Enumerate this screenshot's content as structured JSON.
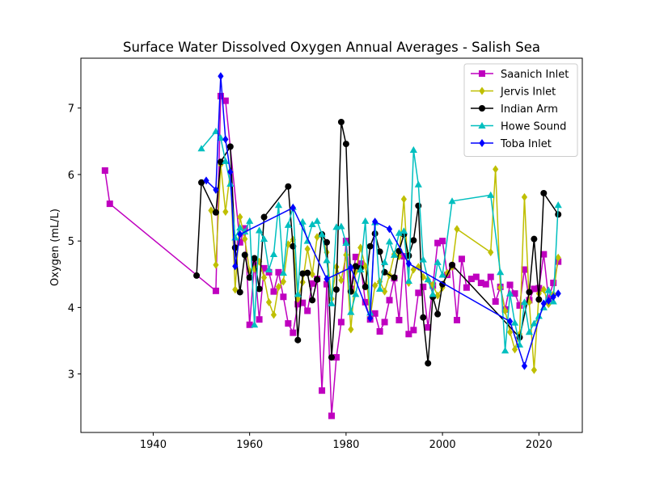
{
  "chart_data": {
    "type": "line",
    "title": "Surface Water Dissolved Oxygen Annual Averages - Salish Sea",
    "xlabel": "",
    "ylabel": "Oxygen (mL/L)",
    "xlim": [
      1925,
      2029
    ],
    "ylim": [
      2.12,
      7.75
    ],
    "xticks": [
      1940,
      1960,
      1980,
      2000,
      2020
    ],
    "yticks": [
      3,
      4,
      5,
      6,
      7
    ],
    "grid": false,
    "legend_position": "top-right",
    "series": [
      {
        "name": "Saanich Inlet",
        "color": "#bf00bf",
        "marker": "square",
        "points": [
          [
            1930,
            6.06
          ],
          [
            1931,
            5.56
          ],
          [
            1953,
            4.25
          ],
          [
            1954,
            7.18
          ],
          [
            1955,
            7.11
          ],
          [
            1958,
            4.98
          ],
          [
            1959,
            5.19
          ],
          [
            1960,
            3.74
          ],
          [
            1961,
            4.66
          ],
          [
            1962,
            3.82
          ],
          [
            1963,
            4.59
          ],
          [
            1964,
            4.53
          ],
          [
            1965,
            4.24
          ],
          [
            1966,
            4.53
          ],
          [
            1967,
            4.16
          ],
          [
            1968,
            3.76
          ],
          [
            1969,
            3.62
          ],
          [
            1970,
            4.05
          ],
          [
            1971,
            4.07
          ],
          [
            1972,
            3.95
          ],
          [
            1973,
            4.36
          ],
          [
            1974,
            4.43
          ],
          [
            1975,
            2.75
          ],
          [
            1976,
            4.35
          ],
          [
            1977,
            2.37
          ],
          [
            1978,
            3.25
          ],
          [
            1979,
            3.78
          ],
          [
            1980,
            5.0
          ],
          [
            1981,
            4.28
          ],
          [
            1982,
            4.76
          ],
          [
            1983,
            4.66
          ],
          [
            1984,
            4.08
          ],
          [
            1985,
            3.82
          ],
          [
            1986,
            3.91
          ],
          [
            1987,
            3.64
          ],
          [
            1988,
            3.78
          ],
          [
            1989,
            4.11
          ],
          [
            1990,
            4.44
          ],
          [
            1991,
            3.81
          ],
          [
            1992,
            4.77
          ],
          [
            1993,
            3.6
          ],
          [
            1994,
            3.66
          ],
          [
            1995,
            4.22
          ],
          [
            1996,
            4.31
          ],
          [
            1997,
            3.7
          ],
          [
            1998,
            4.33
          ],
          [
            1999,
            4.97
          ],
          [
            2000,
            5.0
          ],
          [
            2001,
            4.49
          ],
          [
            2002,
            4.62
          ],
          [
            2003,
            3.81
          ],
          [
            2004,
            4.73
          ],
          [
            2005,
            4.3
          ],
          [
            2006,
            4.43
          ],
          [
            2007,
            4.46
          ],
          [
            2008,
            4.37
          ],
          [
            2009,
            4.35
          ],
          [
            2010,
            4.46
          ],
          [
            2011,
            4.09
          ],
          [
            2012,
            4.31
          ],
          [
            2013,
            3.97
          ],
          [
            2014,
            4.34
          ],
          [
            2015,
            4.21
          ],
          [
            2016,
            4.03
          ],
          [
            2017,
            4.57
          ],
          [
            2018,
            4.11
          ],
          [
            2019,
            4.28
          ],
          [
            2020,
            4.29
          ],
          [
            2021,
            4.8
          ],
          [
            2022,
            4.13
          ],
          [
            2023,
            4.37
          ],
          [
            2024,
            4.69
          ]
        ]
      },
      {
        "name": "Jervis Inlet",
        "color": "#bfbf00",
        "marker": "diamond",
        "points": [
          [
            1952,
            5.46
          ],
          [
            1953,
            4.64
          ],
          [
            1954,
            6.15
          ],
          [
            1955,
            5.44
          ],
          [
            1956,
            6.05
          ],
          [
            1957,
            4.27
          ],
          [
            1958,
            5.36
          ],
          [
            1959,
            5.03
          ],
          [
            1960,
            4.55
          ],
          [
            1961,
            4.58
          ],
          [
            1962,
            4.69
          ],
          [
            1963,
            4.45
          ],
          [
            1964,
            4.08
          ],
          [
            1965,
            3.89
          ],
          [
            1966,
            4.31
          ],
          [
            1967,
            4.39
          ],
          [
            1968,
            4.95
          ],
          [
            1969,
            5.02
          ],
          [
            1970,
            4.13
          ],
          [
            1971,
            4.38
          ],
          [
            1972,
            4.88
          ],
          [
            1973,
            4.5
          ],
          [
            1974,
            5.06
          ],
          [
            1975,
            5.08
          ],
          [
            1976,
            4.83
          ],
          [
            1977,
            4.13
          ],
          [
            1978,
            4.61
          ],
          [
            1979,
            4.41
          ],
          [
            1980,
            4.79
          ],
          [
            1981,
            3.67
          ],
          [
            1982,
            4.54
          ],
          [
            1983,
            4.9
          ],
          [
            1984,
            4.62
          ],
          [
            1985,
            3.85
          ],
          [
            1986,
            4.33
          ],
          [
            1987,
            4.39
          ],
          [
            1988,
            4.24
          ],
          [
            1989,
            4.49
          ],
          [
            1990,
            4.8
          ],
          [
            1991,
            4.77
          ],
          [
            1992,
            5.63
          ],
          [
            1993,
            4.37
          ],
          [
            1994,
            4.57
          ],
          [
            1995,
            4.61
          ],
          [
            1996,
            4.46
          ],
          [
            1997,
            4.42
          ],
          [
            1998,
            4.34
          ],
          [
            1999,
            4.18
          ],
          [
            2000,
            4.3
          ],
          [
            2001,
            4.52
          ],
          [
            2002,
            4.61
          ],
          [
            2003,
            5.18
          ],
          [
            2010,
            4.83
          ],
          [
            2011,
            6.08
          ],
          [
            2012,
            4.3
          ],
          [
            2013,
            3.95
          ],
          [
            2014,
            3.63
          ],
          [
            2015,
            3.37
          ],
          [
            2016,
            3.6
          ],
          [
            2017,
            5.66
          ],
          [
            2018,
            4.08
          ],
          [
            2019,
            3.06
          ],
          [
            2020,
            4.21
          ],
          [
            2021,
            4.27
          ],
          [
            2022,
            4.05
          ],
          [
            2023,
            4.2
          ],
          [
            2024,
            4.75
          ]
        ]
      },
      {
        "name": "Indian Arm",
        "color": "#000000",
        "marker": "circle",
        "points": [
          [
            1949,
            4.48
          ],
          [
            1950,
            5.88
          ],
          [
            1953,
            5.43
          ],
          [
            1954,
            6.19
          ],
          [
            1956,
            6.42
          ],
          [
            1957,
            4.9
          ],
          [
            1958,
            4.23
          ],
          [
            1959,
            4.79
          ],
          [
            1960,
            4.45
          ],
          [
            1961,
            4.74
          ],
          [
            1962,
            4.28
          ],
          [
            1963,
            5.36
          ],
          [
            1968,
            5.82
          ],
          [
            1969,
            4.92
          ],
          [
            1970,
            3.51
          ],
          [
            1971,
            4.51
          ],
          [
            1972,
            4.52
          ],
          [
            1973,
            4.11
          ],
          [
            1974,
            4.42
          ],
          [
            1975,
            5.1
          ],
          [
            1976,
            4.98
          ],
          [
            1977,
            3.25
          ],
          [
            1978,
            4.27
          ],
          [
            1979,
            6.79
          ],
          [
            1980,
            6.46
          ],
          [
            1981,
            4.24
          ],
          [
            1982,
            4.62
          ],
          [
            1983,
            4.59
          ],
          [
            1984,
            4.31
          ],
          [
            1985,
            4.92
          ],
          [
            1986,
            5.11
          ],
          [
            1987,
            4.84
          ],
          [
            1988,
            4.53
          ],
          [
            1990,
            4.45
          ],
          [
            1991,
            4.85
          ],
          [
            1992,
            5.1
          ],
          [
            1993,
            4.78
          ],
          [
            1994,
            5.01
          ],
          [
            1995,
            5.53
          ],
          [
            1996,
            3.85
          ],
          [
            1997,
            3.16
          ],
          [
            1998,
            4.16
          ],
          [
            1999,
            3.9
          ],
          [
            2000,
            4.35
          ],
          [
            2002,
            4.64
          ],
          [
            2016,
            3.55
          ],
          [
            2018,
            4.23
          ],
          [
            2019,
            5.03
          ],
          [
            2020,
            4.12
          ],
          [
            2021,
            5.72
          ],
          [
            2024,
            5.4
          ]
        ]
      },
      {
        "name": "Howe Sound",
        "color": "#00bfbf",
        "marker": "triangle",
        "points": [
          [
            1950,
            6.39
          ],
          [
            1953,
            6.65
          ],
          [
            1954,
            6.55
          ],
          [
            1955,
            6.2
          ],
          [
            1956,
            5.86
          ],
          [
            1957,
            5.05
          ],
          [
            1958,
            5.2
          ],
          [
            1959,
            5.14
          ],
          [
            1960,
            5.3
          ],
          [
            1961,
            3.74
          ],
          [
            1962,
            5.16
          ],
          [
            1963,
            5.03
          ],
          [
            1964,
            4.57
          ],
          [
            1965,
            4.8
          ],
          [
            1966,
            5.54
          ],
          [
            1967,
            4.52
          ],
          [
            1968,
            5.24
          ],
          [
            1969,
            5.51
          ],
          [
            1970,
            4.2
          ],
          [
            1971,
            5.29
          ],
          [
            1972,
            5.0
          ],
          [
            1973,
            5.25
          ],
          [
            1974,
            5.3
          ],
          [
            1975,
            5.1
          ],
          [
            1976,
            4.71
          ],
          [
            1977,
            4.06
          ],
          [
            1978,
            5.21
          ],
          [
            1979,
            5.22
          ],
          [
            1980,
            4.97
          ],
          [
            1981,
            3.93
          ],
          [
            1982,
            4.2
          ],
          [
            1983,
            4.57
          ],
          [
            1984,
            5.3
          ],
          [
            1985,
            3.92
          ],
          [
            1986,
            5.28
          ],
          [
            1987,
            4.28
          ],
          [
            1988,
            4.68
          ],
          [
            1989,
            4.99
          ],
          [
            1990,
            4.79
          ],
          [
            1991,
            5.12
          ],
          [
            1992,
            5.15
          ],
          [
            1993,
            4.4
          ],
          [
            1994,
            6.37
          ],
          [
            1995,
            5.85
          ],
          [
            1996,
            4.72
          ],
          [
            1997,
            4.42
          ],
          [
            1998,
            4.2
          ],
          [
            1999,
            4.68
          ],
          [
            2000,
            4.49
          ],
          [
            2002,
            5.6
          ],
          [
            2010,
            5.69
          ],
          [
            2012,
            4.53
          ],
          [
            2013,
            3.35
          ],
          [
            2014,
            4.21
          ],
          [
            2015,
            3.77
          ],
          [
            2016,
            3.44
          ],
          [
            2017,
            4.08
          ],
          [
            2018,
            3.63
          ],
          [
            2019,
            3.76
          ],
          [
            2020,
            3.87
          ],
          [
            2021,
            4.0
          ],
          [
            2022,
            4.26
          ],
          [
            2023,
            4.09
          ],
          [
            2024,
            5.54
          ]
        ]
      },
      {
        "name": "Toba Inlet",
        "color": "#0000ff",
        "marker": "diamond",
        "points": [
          [
            1951,
            5.91
          ],
          [
            1953,
            5.77
          ],
          [
            1954,
            7.48
          ],
          [
            1955,
            6.53
          ],
          [
            1956,
            6.04
          ],
          [
            1957,
            4.62
          ],
          [
            1958,
            5.1
          ],
          [
            1969,
            5.5
          ],
          [
            1976,
            4.43
          ],
          [
            1981,
            4.6
          ],
          [
            1985,
            3.84
          ],
          [
            1986,
            5.29
          ],
          [
            1989,
            5.18
          ],
          [
            1993,
            4.66
          ],
          [
            2014,
            3.79
          ],
          [
            2017,
            3.12
          ],
          [
            2021,
            4.06
          ],
          [
            2022,
            4.1
          ],
          [
            2023,
            4.16
          ],
          [
            2024,
            4.21
          ]
        ]
      }
    ]
  }
}
